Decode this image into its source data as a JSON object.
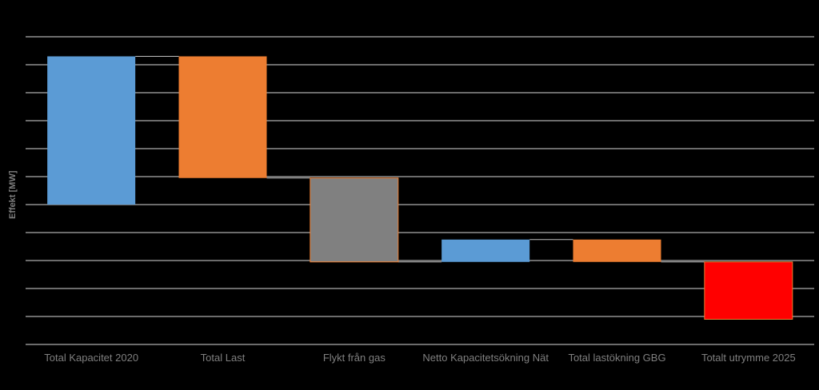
{
  "chart_data": {
    "type": "waterfall",
    "title": "",
    "xlabel": "",
    "ylabel": "Effekt [MW]",
    "ylim": [
      0,
      11
    ],
    "grid": true,
    "legend": "none",
    "categories": [
      "Total Kapacitet 2020",
      "Total Last",
      "Flykt från gas",
      "Netto Kapacitetsökning Nät",
      "Total lastökning GBG",
      "Totalt utrymme 2025"
    ],
    "bars": [
      {
        "category": "Total Kapacitet 2020",
        "start": 5.0,
        "end": 10.3,
        "color": "#5b9bd5"
      },
      {
        "category": "Total Last",
        "start": 10.3,
        "end": 5.95,
        "color": "#ed7d31"
      },
      {
        "category": "Flykt från gas",
        "start": 5.95,
        "end": 2.95,
        "color": "#808080"
      },
      {
        "category": "Netto Kapacitetsökning Nät",
        "start": 2.95,
        "end": 3.75,
        "color": "#5b9bd5"
      },
      {
        "category": "Total lastökning GBG",
        "start": 3.75,
        "end": 2.95,
        "color": "#ed7d31"
      },
      {
        "category": "Totalt utrymme 2025",
        "start": 2.95,
        "end": 0.9,
        "color": "#ff0000"
      }
    ]
  },
  "colors": {
    "background": "#000000",
    "gridline": "#d9d9d9",
    "connector": "#bfbfbf",
    "axis_text": "#7f7f7f"
  }
}
